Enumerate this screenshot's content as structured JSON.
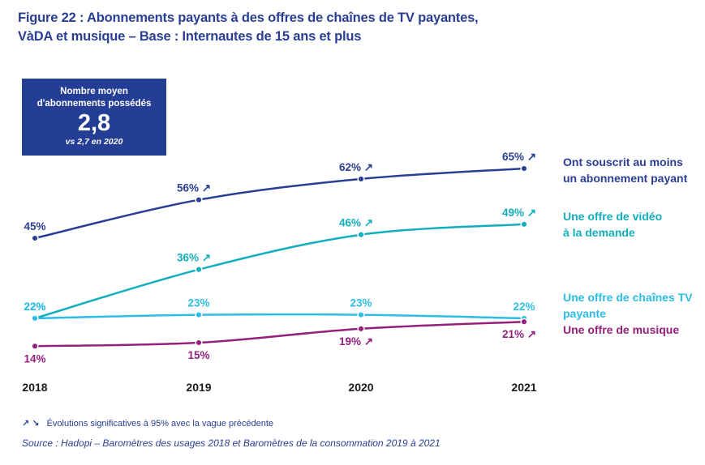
{
  "title_line1": "Figure 22 : Abonnements payants à des offres de chaînes de TV payantes,",
  "title_line2": "VàDA et musique – Base : Internautes de 15 ans et plus",
  "kpi": {
    "label_line1": "Nombre moyen",
    "label_line2": "d'abonnements possédés",
    "value": "2,8",
    "comparison": "vs 2,7 en 2020"
  },
  "footnote": {
    "arrows": "↗ ↘",
    "significance": "Évolutions significatives à 95% avec la vague précédente",
    "source": "Source : Hadopi – Baromètres des usages 2018 et Baromètres de la consommation 2019 à 2021"
  },
  "chart_data": {
    "type": "line",
    "title": "Abonnements payants à des offres de chaînes de TV payantes, VàDA et musique",
    "xlabel": "",
    "ylabel": "",
    "categories": [
      "2018",
      "2019",
      "2020",
      "2021"
    ],
    "ylim": [
      10,
      70
    ],
    "grid": false,
    "legend_position": "right",
    "series": [
      {
        "name": "Ont souscrit au moins un abonnement payant",
        "color": "#2a3f94",
        "values": [
          45,
          56,
          62,
          65
        ],
        "labels": [
          "45%",
          "56%",
          "62%",
          "65%"
        ],
        "significant_up": [
          false,
          true,
          true,
          true
        ],
        "label_position": "above"
      },
      {
        "name": "Une offre de vidéo à la demande",
        "color": "#12aebd",
        "values": [
          22,
          36,
          46,
          49
        ],
        "labels": [
          "22%",
          "36%",
          "46%",
          "49%"
        ],
        "significant_up": [
          false,
          true,
          true,
          true
        ],
        "label_position": "above"
      },
      {
        "name": "Une offre de chaînes TV payante",
        "color": "#2bbde8",
        "values": [
          22,
          23,
          23,
          22
        ],
        "labels": [
          "22%",
          "23%",
          "23%",
          "22%"
        ],
        "significant_up": [
          false,
          false,
          false,
          false
        ],
        "label_position": "above"
      },
      {
        "name": "Une offre de musique",
        "color": "#951f7d",
        "values": [
          14,
          15,
          19,
          21
        ],
        "labels": [
          "14%",
          "15%",
          "19%",
          "21%"
        ],
        "significant_up": [
          false,
          false,
          true,
          true
        ],
        "label_position": "below"
      }
    ]
  }
}
